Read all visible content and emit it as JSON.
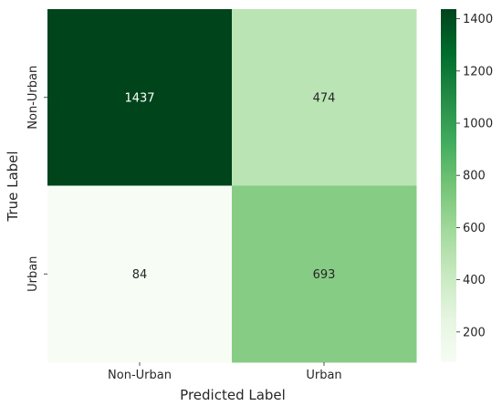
{
  "chart_data": {
    "type": "heatmap",
    "title": "",
    "xlabel": "Predicted Label",
    "ylabel": "True Label",
    "x_categories": [
      "Non-Urban",
      "Urban"
    ],
    "y_categories": [
      "Non-Urban",
      "Urban"
    ],
    "values": [
      [
        1437,
        474
      ],
      [
        84,
        693
      ]
    ],
    "annotations": [
      "1437",
      "474",
      "84",
      "693"
    ],
    "colormap": "Greens",
    "colorbar": {
      "vmin": 84,
      "vmax": 1437,
      "ticks": [
        200,
        400,
        600,
        800,
        1000,
        1200,
        1400
      ],
      "tick_labels": [
        "200",
        "400",
        "600",
        "800",
        "1000",
        "1200",
        "1400"
      ]
    },
    "colors": {
      "low": "#f7fcf5",
      "high": "#00441b",
      "text_dark": "#262626",
      "text_light": "#ffffff"
    }
  }
}
